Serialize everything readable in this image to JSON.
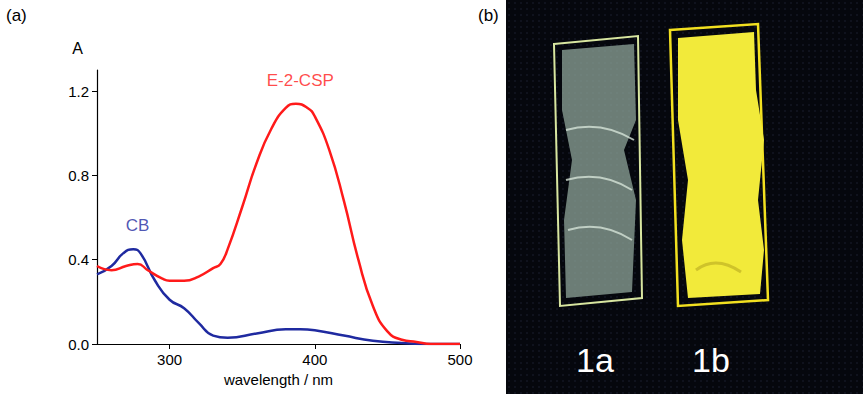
{
  "panels": [
    "(a)",
    "(b)"
  ],
  "chart_data": {
    "type": "line",
    "x_label": "wavelength / nm",
    "y_label": "A",
    "xlim": [
      250,
      500
    ],
    "xticks": [
      300,
      400,
      500
    ],
    "ylim": [
      0,
      1.3
    ],
    "yticks": [
      {
        "value": 0,
        "label": "0.0"
      },
      {
        "value": 0.4,
        "label": "0.4"
      },
      {
        "value": 0.8,
        "label": "0.8"
      },
      {
        "value": 1.2,
        "label": "1.2"
      }
    ],
    "grid": false,
    "series": [
      {
        "name": "CB",
        "color": "#1f2aa0",
        "x": [
          250,
          260,
          268,
          275,
          280,
          290,
          300,
          310,
          320,
          330,
          340,
          360,
          380,
          390,
          400,
          420,
          440,
          460,
          480,
          500
        ],
        "values": [
          0.33,
          0.37,
          0.43,
          0.45,
          0.43,
          0.3,
          0.21,
          0.17,
          0.1,
          0.04,
          0.03,
          0.05,
          0.07,
          0.07,
          0.065,
          0.04,
          0.015,
          0.005,
          0,
          0
        ]
      },
      {
        "name": "E-2-CSP",
        "color": "#ff1a1a",
        "x": [
          250,
          260,
          270,
          278,
          285,
          295,
          300,
          310,
          320,
          330,
          335,
          340,
          350,
          360,
          370,
          380,
          387,
          395,
          400,
          410,
          420,
          430,
          440,
          450,
          460,
          470,
          480,
          500
        ],
        "values": [
          0.37,
          0.35,
          0.37,
          0.38,
          0.35,
          0.31,
          0.3,
          0.3,
          0.32,
          0.36,
          0.38,
          0.45,
          0.65,
          0.86,
          1.02,
          1.12,
          1.14,
          1.12,
          1.08,
          0.92,
          0.68,
          0.4,
          0.18,
          0.06,
          0.02,
          0.01,
          0,
          0
        ]
      }
    ],
    "annotations": [
      {
        "text": "CB",
        "x": 278,
        "y": 0.56,
        "color": "#1f2aa0"
      },
      {
        "text": "E-2-CSP",
        "x": 390,
        "y": 1.25,
        "color": "#ff1a1a"
      }
    ]
  },
  "photo": {
    "labels": [
      "1a",
      "1b"
    ]
  }
}
